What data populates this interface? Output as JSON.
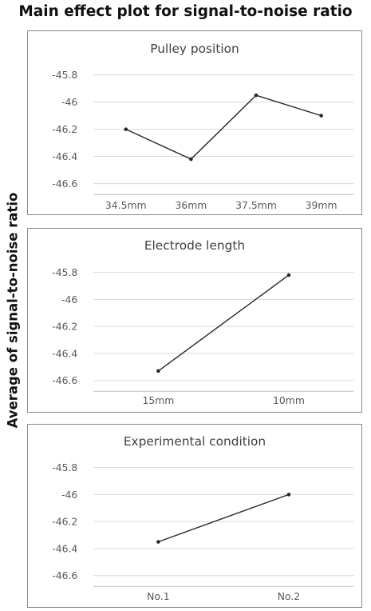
{
  "title": "Main effect plot for signal-to-noise ratio",
  "ylabel": "Average of signal-to-noise ratio",
  "chart_data": [
    {
      "type": "line",
      "title": "Pulley position",
      "categories": [
        "34.5mm",
        "36mm",
        "37.5mm",
        "39mm"
      ],
      "values": [
        -46.2,
        -46.42,
        -45.95,
        -46.1
      ],
      "yticks": [
        "-45.8",
        "-46",
        "-46.2",
        "-46.4",
        "-46.6"
      ],
      "ylim": [
        -46.68,
        -45.7
      ],
      "grid": true
    },
    {
      "type": "line",
      "title": "Electrode length",
      "categories": [
        "15mm",
        "10mm"
      ],
      "values": [
        -46.53,
        -45.82
      ],
      "yticks": [
        "-45.8",
        "-46",
        "-46.2",
        "-46.4",
        "-46.6"
      ],
      "ylim": [
        -46.68,
        -45.7
      ],
      "grid": true
    },
    {
      "type": "line",
      "title": "Experimental condition",
      "categories": [
        "No.1",
        "No.2"
      ],
      "values": [
        -46.35,
        -46.0
      ],
      "yticks": [
        "-45.8",
        "-46",
        "-46.2",
        "-46.4",
        "-46.6"
      ],
      "ylim": [
        -46.68,
        -45.7
      ],
      "grid": true
    }
  ]
}
